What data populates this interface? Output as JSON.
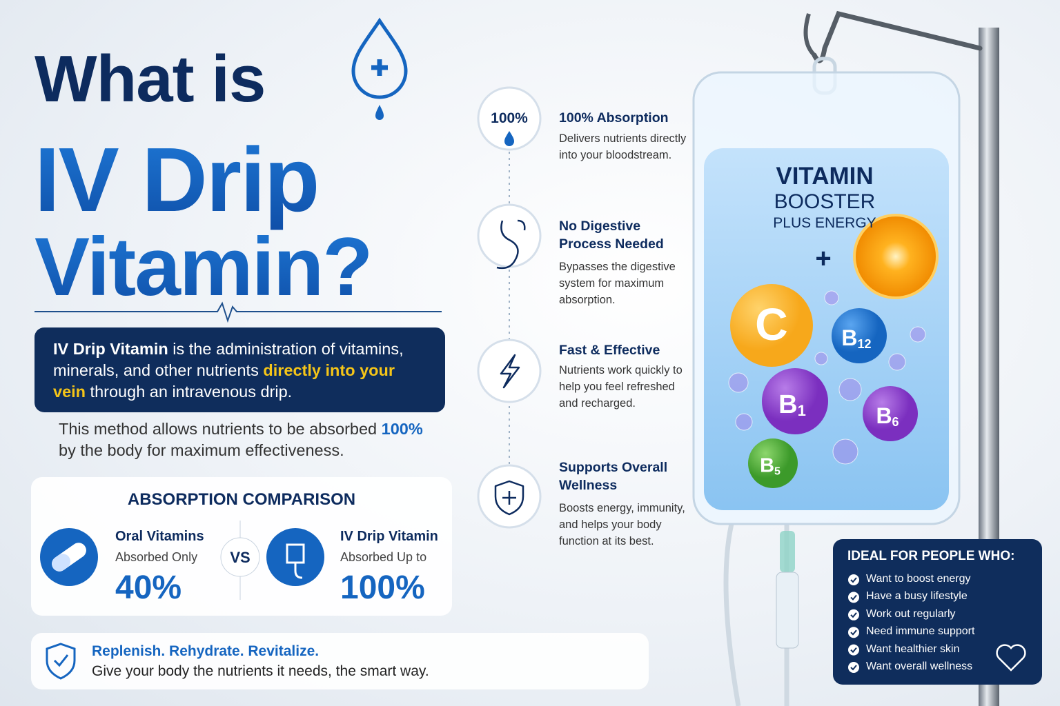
{
  "header": {
    "line1": "What is",
    "line2": "IV Drip",
    "line3": "Vitamin?"
  },
  "intro": {
    "segments": [
      "IV Drip Vitamin",
      " is the administration of vitamins, minerals, and other nutrients ",
      "directly into your vein",
      " through an intravenous drip."
    ]
  },
  "method": {
    "segments": [
      "This method allows nutrients to be absorbed ",
      "100%",
      " by the body for maximum effectiveness."
    ]
  },
  "comparison": {
    "title": "ABSORPTION COMPARISON",
    "oral": {
      "name": "Oral Vitamins",
      "note": "Absorbed Only",
      "value": "40%"
    },
    "vs": "VS",
    "iv": {
      "name": "IV Drip Vitamin",
      "note": "Absorbed Up to",
      "value": "100%"
    }
  },
  "tagline": {
    "headline": "Replenish. Rehydrate. Revitalize.",
    "text": "Give your body the nutrients it needs, the smart way."
  },
  "benefits": [
    {
      "badge": "100%",
      "title": "100% Absorption",
      "text": "Delivers nutrients directly into your bloodstream."
    },
    {
      "title": "No Digestive Process Needed",
      "text": "Bypasses the digestive system for maximum absorption."
    },
    {
      "title": "Fast & Effective",
      "text": "Nutrients work quickly to help you feel refreshed and recharged."
    },
    {
      "title": "Supports Overall Wellness",
      "text": "Boosts energy, immunity, and helps your body function at its best."
    }
  ],
  "bag": {
    "line1": "VITAMIN",
    "line2": "BOOSTER",
    "line3": "PLUS ENERGY",
    "vitamins": [
      {
        "letter": "C"
      },
      {
        "letter": "B",
        "sub": "12"
      },
      {
        "letter": "B",
        "sub": "1"
      },
      {
        "letter": "B",
        "sub": "6"
      },
      {
        "letter": "B",
        "sub": "5"
      }
    ]
  },
  "ideal": {
    "title": "IDEAL FOR PEOPLE WHO:",
    "items": [
      "Want to boost energy",
      "Have a busy lifestyle",
      "Work out regularly",
      "Need immune support",
      "Want healthier skin",
      "Want overall wellness"
    ]
  }
}
